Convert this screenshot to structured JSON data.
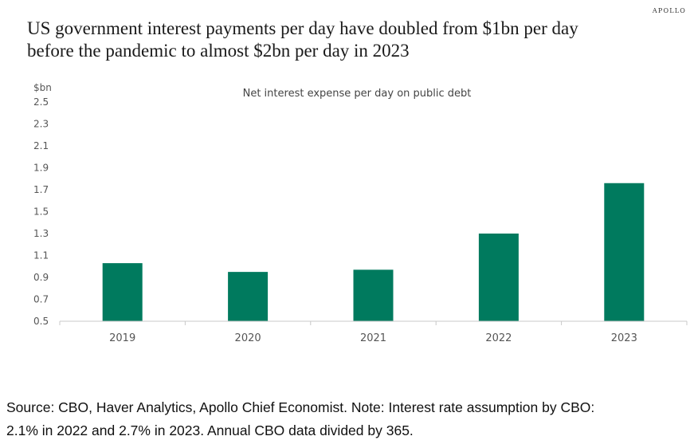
{
  "brand": "APOLLO",
  "headline": {
    "line1": "US government interest payments per day have doubled from $1bn per day",
    "line2": "before the pandemic to almost $2bn per day in 2023"
  },
  "footnote": {
    "line1": "Source: CBO, Haver Analytics, Apollo Chief Economist. Note: Interest rate assumption by CBO:",
    "line2": "2.1% in 2022 and 2.7% in 2023. Annual CBO data divided by 365."
  },
  "colors": {
    "bar": "#007a5e",
    "axis": "#c8c8c8",
    "tick_text": "#555555"
  },
  "chart_data": {
    "type": "bar",
    "title": "Net interest expense per day on public debt",
    "ylabel": "$bn",
    "xlabel": "",
    "categories": [
      "2019",
      "2020",
      "2021",
      "2022",
      "2023"
    ],
    "values": [
      1.03,
      0.95,
      0.97,
      1.3,
      1.76
    ],
    "ylim": [
      0.5,
      2.5
    ],
    "yticks": [
      "2.5",
      "2.3",
      "2.1",
      "1.9",
      "1.7",
      "1.5",
      "1.3",
      "1.1",
      "0.9",
      "0.7",
      "0.5"
    ],
    "grid": false,
    "legend": "none"
  }
}
